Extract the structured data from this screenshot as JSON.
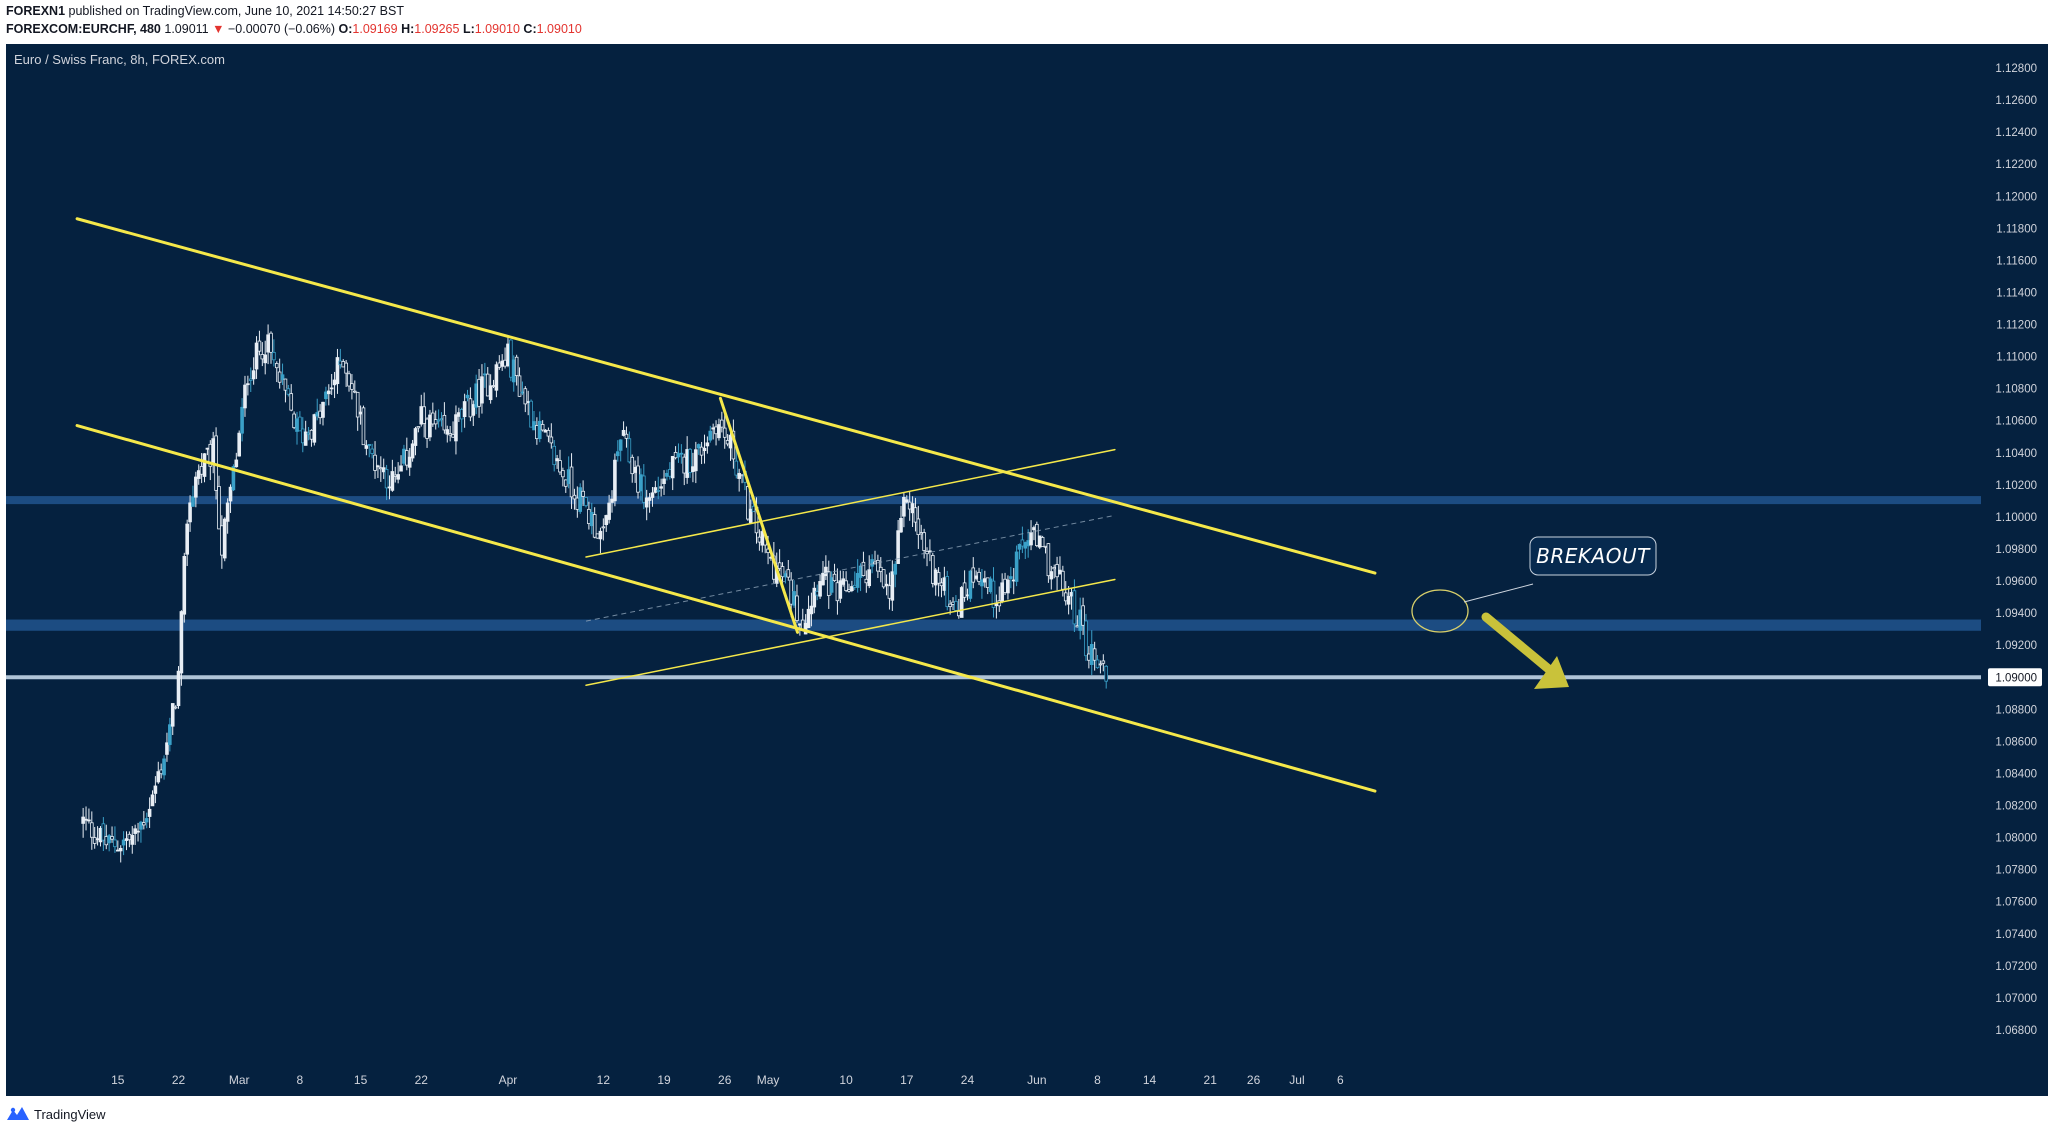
{
  "header": {
    "publisher": "FOREXN1",
    "published_text": "published on TradingView.com, June 10, 2021 14:50:27 BST",
    "symbol": "FOREXCOM:EURCHF, 480",
    "last": "1.09011",
    "change": "−0.00070 (−0.06%)",
    "o_label": "O:",
    "o_value": "1.09169",
    "h_label": "H:",
    "h_value": "1.09265",
    "l_label": "L:",
    "l_value": "1.09010",
    "c_label": "C:",
    "c_value": "1.09010"
  },
  "chart_title": "Euro / Swiss Franc, 8h, FOREX.com",
  "footer": {
    "brand": "TradingView"
  },
  "colors": {
    "background": "#05213f",
    "candle": "#e8eef5",
    "candle_alt": "#3aa0c8",
    "trendline": "#f5e84a",
    "zone": "#1e4f86",
    "price_line": "#cfe0f2",
    "arrow": "#c9c23a",
    "axis_text": "#d1d4dc"
  },
  "annotation": {
    "label": "BREKAOUT"
  },
  "chart_data": {
    "type": "candlestick",
    "title": "Euro / Swiss Franc, 8h, FOREX.com",
    "ylim": [
      1.0665,
      1.1295
    ],
    "y_ticks": [
      "1.06800",
      "1.07000",
      "1.07200",
      "1.07400",
      "1.07600",
      "1.07800",
      "1.08000",
      "1.08200",
      "1.08400",
      "1.08600",
      "1.08800",
      "1.09000",
      "1.09200",
      "1.09400",
      "1.09600",
      "1.09800",
      "1.10000",
      "1.10200",
      "1.10400",
      "1.10600",
      "1.10800",
      "1.11000",
      "1.11200",
      "1.11400",
      "1.11600",
      "1.11800",
      "1.12000",
      "1.12200",
      "1.12400",
      "1.12600",
      "1.12800"
    ],
    "current_price_label": "1.09000",
    "x_ticks": [
      {
        "label": "15",
        "day": -14
      },
      {
        "label": "22",
        "day": -7
      },
      {
        "label": "Mar",
        "day": 0
      },
      {
        "label": "8",
        "day": 7
      },
      {
        "label": "15",
        "day": 14
      },
      {
        "label": "22",
        "day": 21
      },
      {
        "label": "Apr",
        "day": 31
      },
      {
        "label": "12",
        "day": 42
      },
      {
        "label": "19",
        "day": 49
      },
      {
        "label": "26",
        "day": 56
      },
      {
        "label": "May",
        "day": 61
      },
      {
        "label": "10",
        "day": 70
      },
      {
        "label": "17",
        "day": 77
      },
      {
        "label": "24",
        "day": 84
      },
      {
        "label": "Jun",
        "day": 92
      },
      {
        "label": "8",
        "day": 99
      },
      {
        "label": "14",
        "day": 105
      },
      {
        "label": "21",
        "day": 112
      },
      {
        "label": "26",
        "day": 117
      },
      {
        "label": "Jul",
        "day": 122
      },
      {
        "label": "6",
        "day": 127
      }
    ],
    "zones": [
      {
        "name": "resistance-zone",
        "from": 1.1008,
        "to": 1.1013
      },
      {
        "name": "support-zone",
        "from": 1.0929,
        "to": 1.0936
      },
      {
        "name": "price-line",
        "from": 1.08995,
        "to": 1.09005
      }
    ],
    "trendlines": [
      {
        "name": "channel-upper",
        "x1": -18.7,
        "y1": 1.1186,
        "x2": 131,
        "y2": 1.0965,
        "width": 3
      },
      {
        "name": "channel-lower",
        "x1": -18.7,
        "y1": 1.1057,
        "x2": 131,
        "y2": 1.0829,
        "width": 3
      },
      {
        "name": "drop-line",
        "x1": 55.5,
        "y1": 1.1074,
        "x2": 64.4,
        "y2": 1.0928,
        "width": 3
      },
      {
        "name": "rising-upper",
        "x1": 40,
        "y1": 1.0975,
        "x2": 101,
        "y2": 1.1042,
        "width": 1.5
      },
      {
        "name": "rising-lower",
        "x1": 40,
        "y1": 1.0895,
        "x2": 101,
        "y2": 1.0961,
        "width": 1.5
      }
    ],
    "dashed_lines": [
      {
        "name": "midline-dashed",
        "x1": 40,
        "y1": 1.0935,
        "x2": 101,
        "y2": 1.1001
      }
    ],
    "anchor_closes": [
      {
        "day": -18,
        "close": 1.081
      },
      {
        "day": -15,
        "close": 1.0795
      },
      {
        "day": -12,
        "close": 1.08
      },
      {
        "day": -10,
        "close": 1.0825
      },
      {
        "day": -8,
        "close": 1.0865
      },
      {
        "day": -7,
        "close": 1.09
      },
      {
        "day": -6,
        "close": 1.1
      },
      {
        "day": -5,
        "close": 1.1025
      },
      {
        "day": -3,
        "close": 1.104
      },
      {
        "day": -2,
        "close": 1.098
      },
      {
        "day": 0,
        "close": 1.105
      },
      {
        "day": 1,
        "close": 1.109
      },
      {
        "day": 3,
        "close": 1.111
      },
      {
        "day": 5,
        "close": 1.108
      },
      {
        "day": 7,
        "close": 1.105
      },
      {
        "day": 9,
        "close": 1.106
      },
      {
        "day": 12,
        "close": 1.11
      },
      {
        "day": 15,
        "close": 1.104
      },
      {
        "day": 18,
        "close": 1.102
      },
      {
        "day": 21,
        "close": 1.106
      },
      {
        "day": 24,
        "close": 1.105
      },
      {
        "day": 28,
        "close": 1.108
      },
      {
        "day": 31,
        "close": 1.11
      },
      {
        "day": 34,
        "close": 1.106
      },
      {
        "day": 37,
        "close": 1.103
      },
      {
        "day": 40,
        "close": 1.1005
      },
      {
        "day": 42,
        "close": 1.0985
      },
      {
        "day": 44,
        "close": 1.105
      },
      {
        "day": 47,
        "close": 1.101
      },
      {
        "day": 50,
        "close": 1.103
      },
      {
        "day": 53,
        "close": 1.104
      },
      {
        "day": 55,
        "close": 1.106
      },
      {
        "day": 57,
        "close": 1.104
      },
      {
        "day": 59,
        "close": 1.1
      },
      {
        "day": 61,
        "close": 1.0975
      },
      {
        "day": 63,
        "close": 1.096
      },
      {
        "day": 65,
        "close": 1.0935
      },
      {
        "day": 67,
        "close": 1.0965
      },
      {
        "day": 69,
        "close": 1.095
      },
      {
        "day": 71,
        "close": 1.096
      },
      {
        "day": 73,
        "close": 1.097
      },
      {
        "day": 75,
        "close": 1.095
      },
      {
        "day": 77,
        "close": 1.1015
      },
      {
        "day": 79,
        "close": 1.098
      },
      {
        "day": 81,
        "close": 1.0955
      },
      {
        "day": 83,
        "close": 1.0945
      },
      {
        "day": 85,
        "close": 1.097
      },
      {
        "day": 87,
        "close": 1.095
      },
      {
        "day": 89,
        "close": 1.096
      },
      {
        "day": 91,
        "close": 1.099
      },
      {
        "day": 93,
        "close": 1.0975
      },
      {
        "day": 95,
        "close": 1.0955
      },
      {
        "day": 96,
        "close": 1.0945
      },
      {
        "day": 97,
        "close": 1.0935
      },
      {
        "day": 98,
        "close": 1.0915
      },
      {
        "day": 99,
        "close": 1.0912
      },
      {
        "day": 100,
        "close": 1.0901
      }
    ]
  }
}
